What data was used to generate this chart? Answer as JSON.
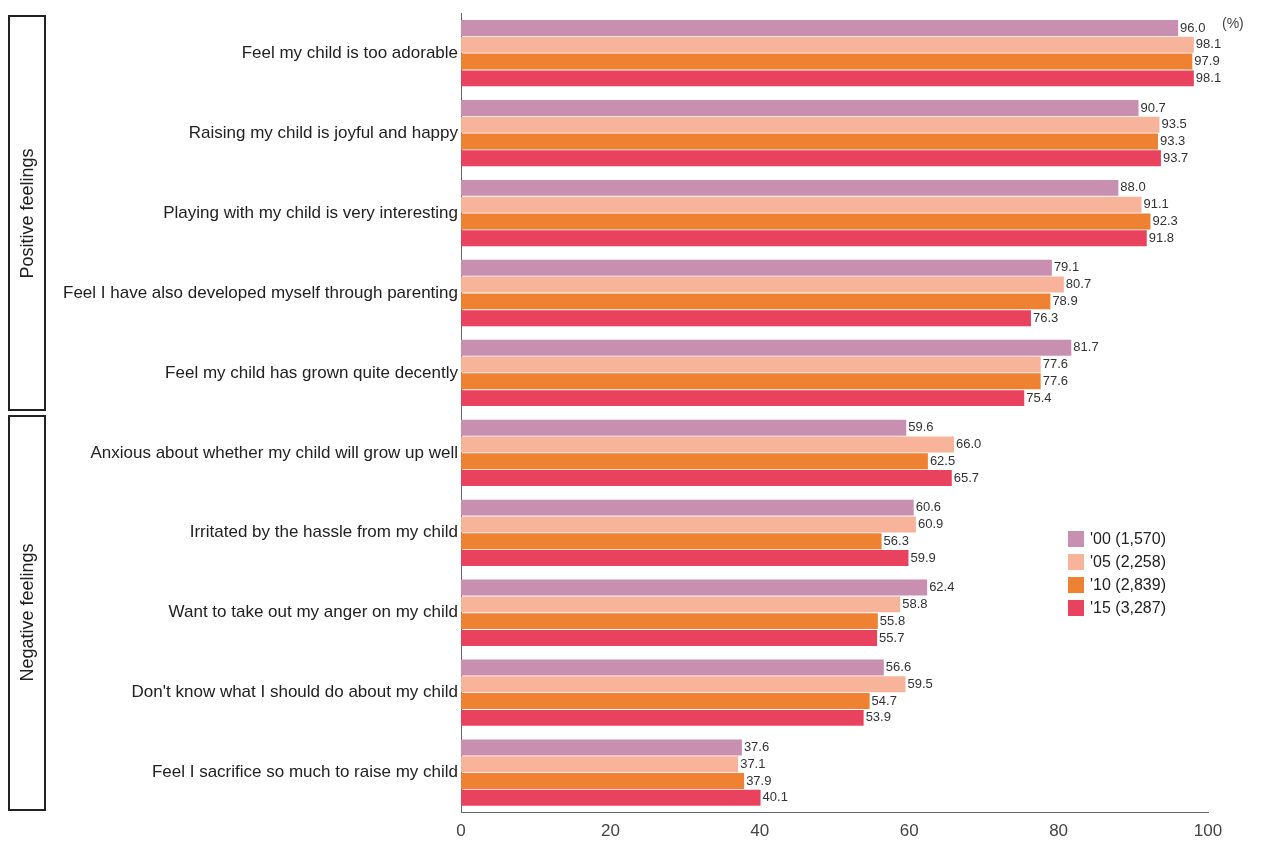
{
  "chart_data": {
    "type": "bar",
    "orientation": "horizontal",
    "categories": [
      "Feel my child is too adorable",
      "Raising my child is joyful and happy",
      "Playing with my child is very interesting",
      "Feel I have also developed myself through parenting",
      "Feel my child has grown quite decently",
      "Anxious about whether my child will grow up well",
      "Irritated by the hassle from my child",
      "Want to take out my anger on my child",
      "Don't know what I should do about my child",
      "Feel I sacrifice so much to raise my child"
    ],
    "series": [
      {
        "name": "'00 (1,570)",
        "color": "#c98fb0",
        "values": [
          96.0,
          90.7,
          88.0,
          79.1,
          81.7,
          59.6,
          60.6,
          62.4,
          56.6,
          37.6
        ],
        "value_labels": [
          "96.0",
          "90.7",
          "88.0",
          "79.1",
          "81.7",
          "59.6",
          "60.6",
          "62.4",
          "56.6",
          "37.6"
        ]
      },
      {
        "name": "'05 (2,258)",
        "color": "#f7b49a",
        "values": [
          98.1,
          93.5,
          91.1,
          80.7,
          77.6,
          66.0,
          60.9,
          58.8,
          59.5,
          37.1
        ],
        "value_labels": [
          "98.1",
          "93.5",
          "91.1",
          "80.7",
          "77.6",
          "66.0",
          "60.9",
          "58.8",
          "59.5",
          "37.1"
        ]
      },
      {
        "name": "'10 (2,839)",
        "color": "#ee8132",
        "values": [
          97.9,
          93.3,
          92.3,
          78.9,
          77.6,
          62.5,
          56.3,
          55.8,
          54.7,
          37.9
        ],
        "value_labels": [
          "97.9",
          "93.3",
          "92.3",
          "78.9",
          "77.6",
          "62.5",
          "56.3",
          "55.8",
          "54.7",
          "37.9"
        ]
      },
      {
        "name": "'15 (3,287)",
        "color": "#e8425f",
        "values": [
          98.1,
          93.7,
          91.8,
          76.3,
          75.4,
          65.7,
          59.9,
          55.7,
          53.9,
          40.1
        ],
        "value_labels": [
          "98.1",
          "93.7",
          "91.8",
          "76.3",
          "75.4",
          "65.7",
          "59.9",
          "55.7",
          "53.9",
          "40.1"
        ]
      }
    ],
    "xlim": [
      0,
      100
    ],
    "xticks": [
      0,
      20,
      40,
      60,
      80,
      100
    ],
    "grid": false,
    "legend": "right",
    "annotations": [
      "(%)",
      "Positive feelings",
      "Negative feelings"
    ]
  }
}
